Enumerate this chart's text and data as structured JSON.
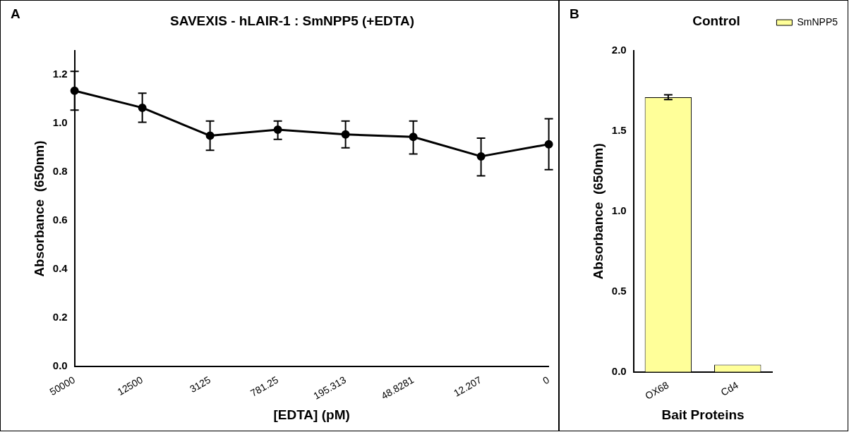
{
  "chart_data": [
    {
      "type": "line",
      "title": "SAVEXIS - hLAIR-1 : SmNPP5 (+EDTA)",
      "xlabel": "[EDTA] (pM)",
      "ylabel": "Absorbance  (650nm)",
      "annotations": [
        "A"
      ],
      "categories": [
        "50000",
        "12500",
        "3125",
        "781.25",
        "195.313",
        "48.8281",
        "12.207",
        "0"
      ],
      "series": [
        {
          "color": "#000000",
          "values": [
            1.135,
            1.065,
            0.95,
            0.975,
            0.955,
            0.945,
            0.865,
            0.915
          ],
          "errors": [
            [
              1.055,
              1.215
            ],
            [
              1.005,
              1.125
            ],
            [
              0.89,
              1.01
            ],
            [
              0.935,
              1.01
            ],
            [
              0.9,
              1.01
            ],
            [
              0.875,
              1.01
            ],
            [
              0.785,
              0.94
            ],
            [
              0.81,
              1.02
            ]
          ]
        }
      ],
      "ylim": [
        0,
        1.3
      ],
      "yticks": [
        {
          "value": 0,
          "label": "0.0"
        },
        0.2,
        0.4,
        0.6,
        0.8,
        {
          "value": 1,
          "label": "1.0"
        },
        1.2
      ],
      "grid": false,
      "marker": "circle"
    },
    {
      "type": "bar",
      "title": "Control",
      "xlabel": "Bait Proteins",
      "ylabel": "Absorbance  (650nm)",
      "annotations": [
        "B"
      ],
      "categories": [
        "OX68",
        "Cd4"
      ],
      "series": [
        {
          "name": "SmNPP5",
          "color": "#ffff99",
          "values": [
            1.71,
            0.045
          ],
          "errors": [
            0.015,
            null
          ]
        }
      ],
      "ylim": [
        0,
        2
      ],
      "yticks": [
        {
          "value": 0,
          "label": "0.0"
        },
        0.5,
        {
          "value": 1,
          "label": "1.0"
        },
        1.5,
        {
          "value": 2,
          "label": "2.0"
        }
      ],
      "grid": false,
      "legend": "top right"
    }
  ]
}
